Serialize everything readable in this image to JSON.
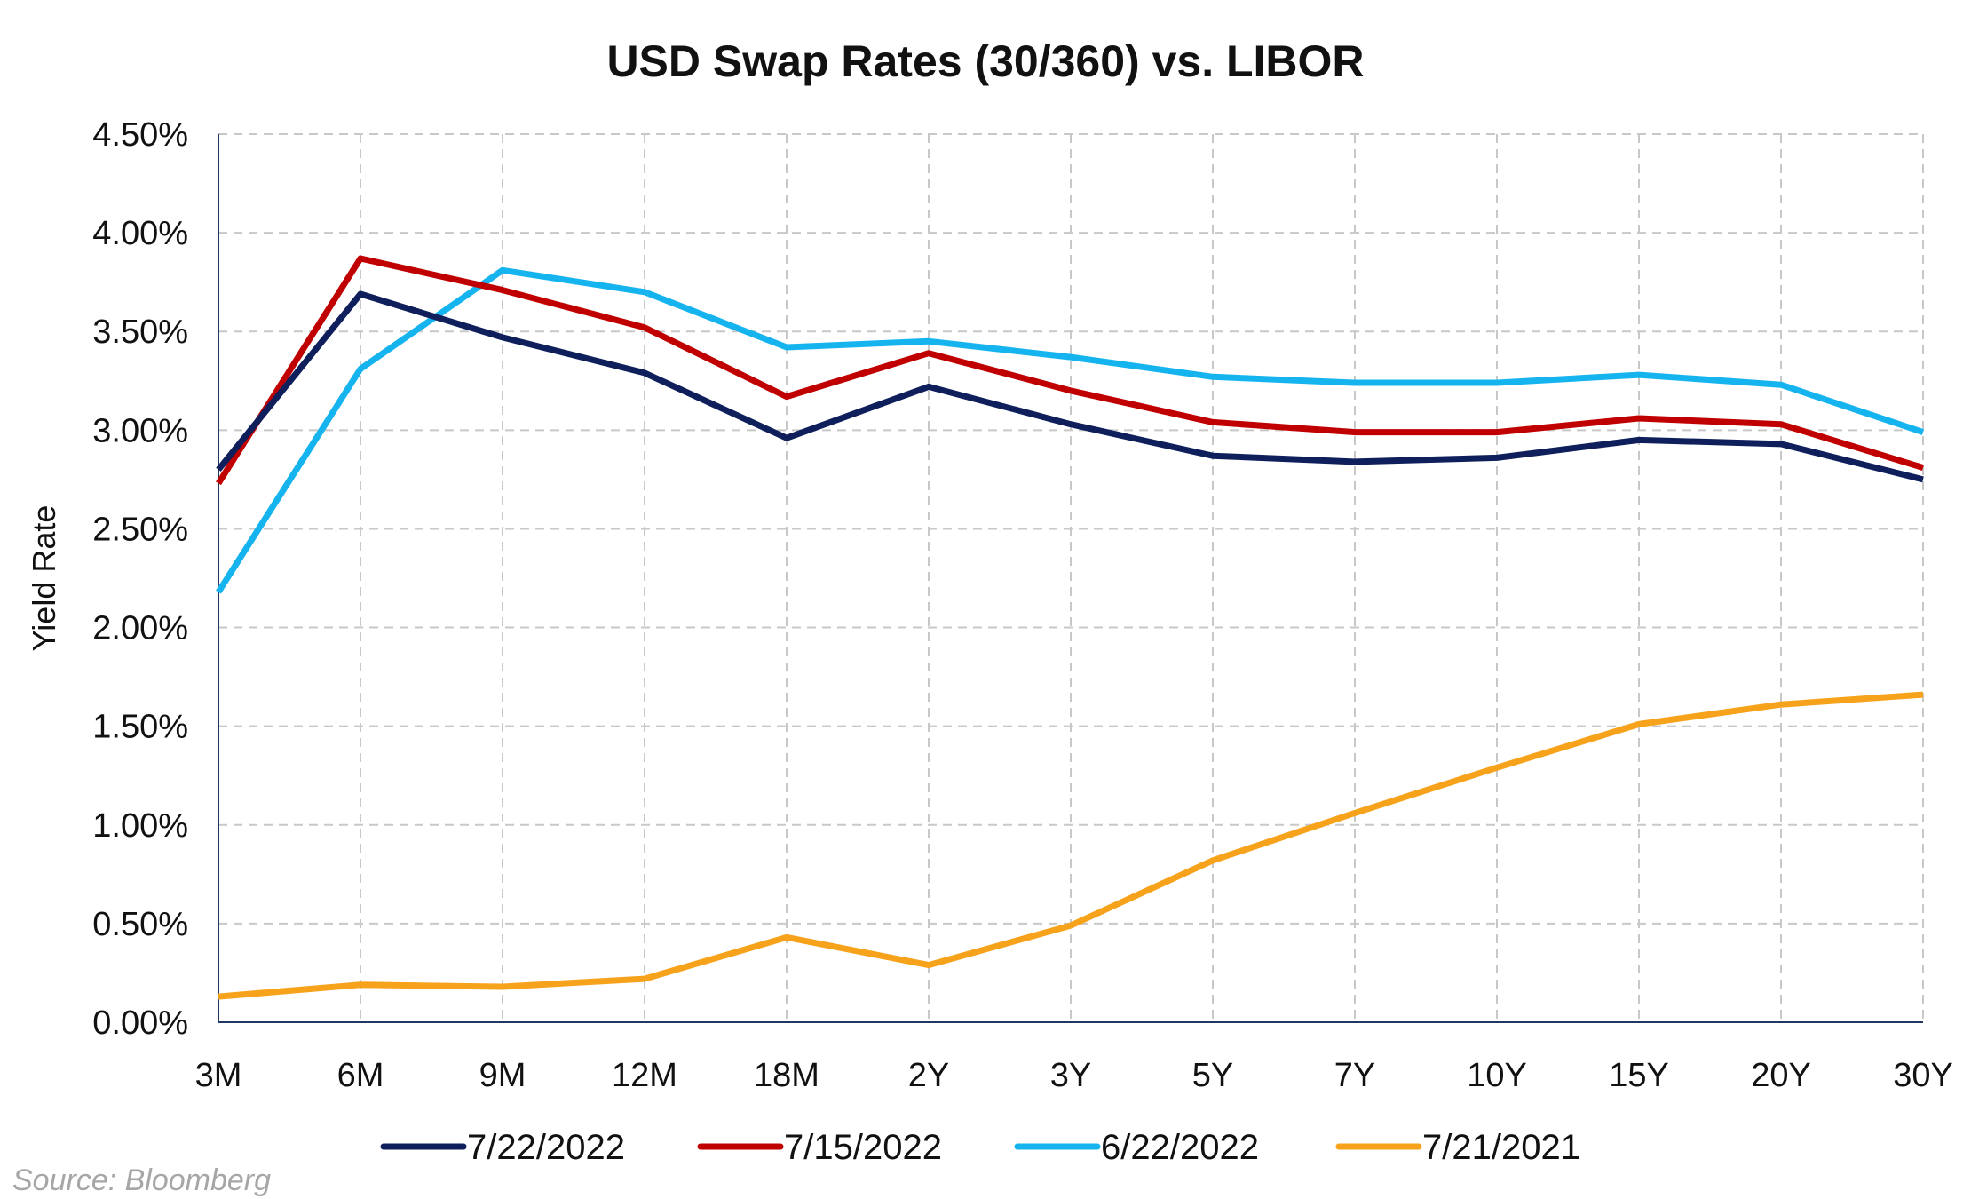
{
  "chart_data": {
    "type": "line",
    "title": "USD Swap Rates (30/360) vs. LIBOR",
    "xlabel": "",
    "ylabel": "Yield Rate",
    "categories": [
      "3M",
      "6M",
      "9M",
      "12M",
      "18M",
      "2Y",
      "3Y",
      "5Y",
      "7Y",
      "10Y",
      "15Y",
      "20Y",
      "30Y"
    ],
    "y_ticks": [
      "0.00%",
      "0.50%",
      "1.00%",
      "1.50%",
      "2.00%",
      "2.50%",
      "3.00%",
      "3.50%",
      "4.00%",
      "4.50%"
    ],
    "ylim": [
      0,
      4.5
    ],
    "grid": true,
    "legend_position": "bottom",
    "series": [
      {
        "name": "7/22/2022",
        "color": "#0e1f5b",
        "values": [
          2.8,
          3.69,
          3.47,
          3.29,
          2.96,
          3.22,
          3.03,
          2.87,
          2.84,
          2.86,
          2.95,
          2.93,
          2.75
        ]
      },
      {
        "name": "7/15/2022",
        "color": "#c00000",
        "values": [
          2.73,
          3.87,
          3.71,
          3.52,
          3.17,
          3.39,
          3.2,
          3.04,
          2.99,
          2.99,
          3.06,
          3.03,
          2.81
        ]
      },
      {
        "name": "6/22/2022",
        "color": "#16b4ee",
        "values": [
          2.18,
          3.31,
          3.81,
          3.7,
          3.42,
          3.45,
          3.37,
          3.27,
          3.24,
          3.24,
          3.28,
          3.23,
          2.99
        ]
      },
      {
        "name": "7/21/2021",
        "color": "#f7a21b",
        "values": [
          0.13,
          0.19,
          0.18,
          0.22,
          0.43,
          0.29,
          0.49,
          0.82,
          1.06,
          1.29,
          1.51,
          1.61,
          1.66
        ]
      }
    ]
  },
  "source": "Source: Bloomberg"
}
